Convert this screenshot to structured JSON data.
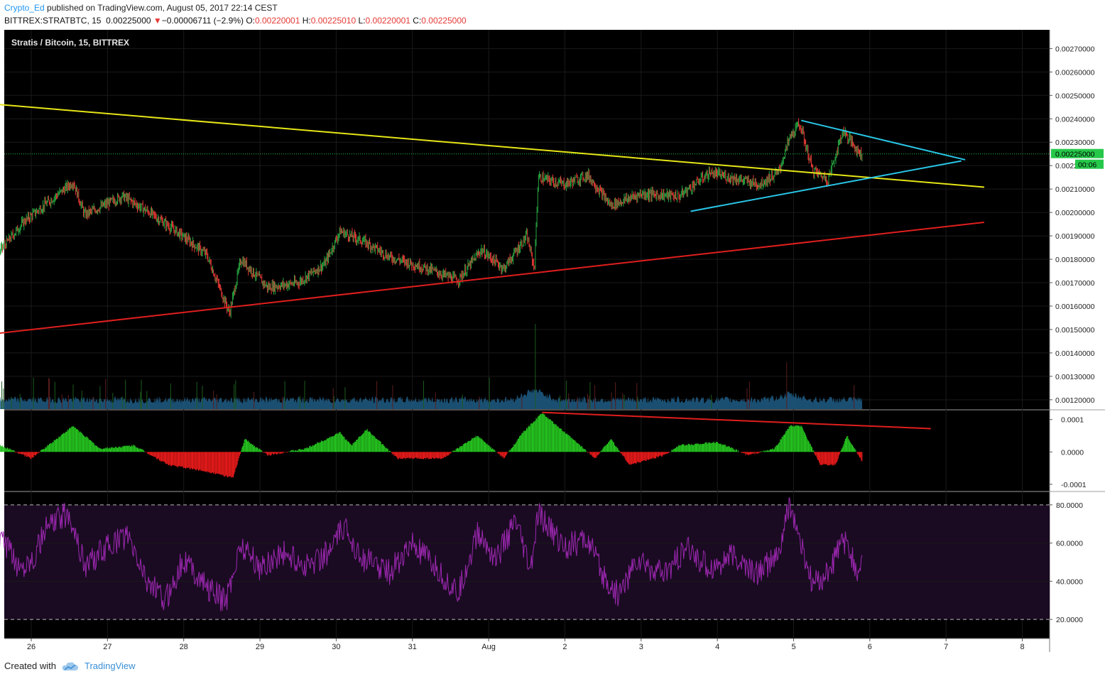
{
  "header": {
    "author": "Crypto_Ed",
    "published_text": "published on TradingView.com, August 05, 2017 22:14 CEST",
    "symbol": "BITTREX:STRATBTC, 15",
    "last": "0.00225000",
    "down_arrow": "▼",
    "change": "−0.00006711 (−2.9%)",
    "o_label": "O:",
    "o_value": "0.00220001",
    "h_label": "H:",
    "h_value": "0.00225010",
    "l_label": "L:",
    "l_value": "0.00220001",
    "c_label": "C:",
    "c_value": "0.00225000"
  },
  "footer": {
    "created_with": "Created with",
    "brand": "TradingView",
    "logo_icon": "tradingview-cloud-icon"
  },
  "colors": {
    "background": "#000000",
    "grid": "#1a1a1a",
    "up": "#26a641",
    "down": "#e53935",
    "trend_yellow": "#e6e617",
    "trend_red": "#e01e1e",
    "trend_cyan": "#29c5e6",
    "rsi": "#9c27b0",
    "rsi_band": "#1a0b22",
    "volume": "#1f5d86",
    "last_price": "#26c84a"
  },
  "chart_data": [
    {
      "type": "candlestick",
      "title": "Stratis / Bitcoin, 15, BITTREX",
      "ylim": [
        0.00116,
        0.00278
      ],
      "y_ticks": [
        "0.00270000",
        "0.00260000",
        "0.00250000",
        "0.00240000",
        "0.00230000",
        "0.00220000",
        "0.00210000",
        "0.00200000",
        "0.00190000",
        "0.00180000",
        "0.00170000",
        "0.00160000",
        "0.00150000",
        "0.00140000",
        "0.00130000",
        "0.00120000"
      ],
      "x_ticks": [
        "26",
        "27",
        "28",
        "29",
        "30",
        "31",
        "Aug",
        "2",
        "3",
        "4",
        "5",
        "6",
        "7",
        "8"
      ],
      "last_price": 0.00225,
      "last_price_label": "0.00225000",
      "countdown": "00:06",
      "key_points": [
        {
          "day": 25.0,
          "price": 0.00195
        },
        {
          "day": 25.1,
          "price": 0.00186
        },
        {
          "day": 25.4,
          "price": 0.00176
        },
        {
          "day": 25.9,
          "price": 0.00196
        },
        {
          "day": 26.55,
          "price": 0.00213
        },
        {
          "day": 26.7,
          "price": 0.00199
        },
        {
          "day": 27.2,
          "price": 0.00207
        },
        {
          "day": 27.55,
          "price": 0.002
        },
        {
          "day": 27.9,
          "price": 0.00192
        },
        {
          "day": 28.3,
          "price": 0.00182
        },
        {
          "day": 28.6,
          "price": 0.00157
        },
        {
          "day": 28.75,
          "price": 0.0018
        },
        {
          "day": 29.1,
          "price": 0.00168
        },
        {
          "day": 29.5,
          "price": 0.0017
        },
        {
          "day": 29.85,
          "price": 0.00178
        },
        {
          "day": 30.05,
          "price": 0.00192
        },
        {
          "day": 30.4,
          "price": 0.00187
        },
        {
          "day": 30.7,
          "price": 0.00181
        },
        {
          "day": 31.2,
          "price": 0.00176
        },
        {
          "day": 31.6,
          "price": 0.00171
        },
        {
          "day": 31.9,
          "price": 0.00184
        },
        {
          "day": 32.2,
          "price": 0.00176
        },
        {
          "day": 32.5,
          "price": 0.0019
        },
        {
          "day": 32.6,
          "price": 0.00176
        },
        {
          "day": 32.65,
          "price": 0.00215
        },
        {
          "day": 33.0,
          "price": 0.00212
        },
        {
          "day": 33.3,
          "price": 0.00216
        },
        {
          "day": 33.6,
          "price": 0.00203
        },
        {
          "day": 34.0,
          "price": 0.00208
        },
        {
          "day": 34.5,
          "price": 0.00207
        },
        {
          "day": 34.9,
          "price": 0.00217
        },
        {
          "day": 35.3,
          "price": 0.00214
        },
        {
          "day": 35.55,
          "price": 0.00212
        },
        {
          "day": 35.8,
          "price": 0.00217
        },
        {
          "day": 35.95,
          "price": 0.00232
        },
        {
          "day": 36.08,
          "price": 0.00238
        },
        {
          "day": 36.25,
          "price": 0.00218
        },
        {
          "day": 36.45,
          "price": 0.00214
        },
        {
          "day": 36.65,
          "price": 0.00235
        },
        {
          "day": 36.85,
          "price": 0.00226
        },
        {
          "day": 36.9,
          "price": 0.00225
        }
      ],
      "trendlines": [
        {
          "name": "long-term resistance",
          "color": "yellow",
          "from": [
            24.7,
            0.002485
          ],
          "to": [
            38.5,
            0.002108
          ]
        },
        {
          "name": "long-term support",
          "color": "red",
          "from": [
            24.7,
            0.001452
          ],
          "to": [
            38.5,
            0.001958
          ]
        },
        {
          "name": "pennant upper",
          "color": "cyan",
          "from": [
            36.1,
            0.002393
          ],
          "to": [
            38.25,
            0.002225
          ]
        },
        {
          "name": "pennant lower",
          "color": "cyan",
          "from": [
            34.65,
            0.002005
          ],
          "to": [
            38.2,
            0.00222
          ]
        }
      ],
      "volume": {
        "peaks": [
          {
            "day": 32.6,
            "relative": 1.0
          },
          {
            "day": 35.95,
            "relative": 0.55
          }
        ]
      }
    },
    {
      "type": "histogram",
      "name": "MACD histogram",
      "y_ticks": [
        "0.0001",
        "0.0000",
        "-0.0001"
      ],
      "ylim": [
        -0.00012,
        0.00013
      ],
      "key_points": [
        {
          "day": 25.0,
          "value": -4e-05
        },
        {
          "day": 25.5,
          "value": 3e-05
        },
        {
          "day": 26.0,
          "value": -2e-05
        },
        {
          "day": 26.55,
          "value": 8e-05
        },
        {
          "day": 26.9,
          "value": 1e-05
        },
        {
          "day": 27.35,
          "value": 2e-05
        },
        {
          "day": 27.8,
          "value": -4e-05
        },
        {
          "day": 28.3,
          "value": -6e-05
        },
        {
          "day": 28.65,
          "value": -8e-05
        },
        {
          "day": 28.8,
          "value": 4e-05
        },
        {
          "day": 29.1,
          "value": -1e-05
        },
        {
          "day": 29.6,
          "value": 1e-05
        },
        {
          "day": 30.05,
          "value": 6e-05
        },
        {
          "day": 30.2,
          "value": 2e-05
        },
        {
          "day": 30.4,
          "value": 7e-05
        },
        {
          "day": 30.8,
          "value": -2e-05
        },
        {
          "day": 31.4,
          "value": -2e-05
        },
        {
          "day": 31.85,
          "value": 5e-05
        },
        {
          "day": 32.2,
          "value": -2e-05
        },
        {
          "day": 32.45,
          "value": 6e-05
        },
        {
          "day": 32.7,
          "value": 0.00012
        },
        {
          "day": 33.1,
          "value": 4e-05
        },
        {
          "day": 33.4,
          "value": -2e-05
        },
        {
          "day": 33.6,
          "value": 4e-05
        },
        {
          "day": 33.85,
          "value": -4e-05
        },
        {
          "day": 34.3,
          "value": -1e-05
        },
        {
          "day": 34.5,
          "value": 2e-05
        },
        {
          "day": 35.0,
          "value": 3e-05
        },
        {
          "day": 35.4,
          "value": -1e-05
        },
        {
          "day": 35.75,
          "value": 1e-05
        },
        {
          "day": 35.95,
          "value": 8e-05
        },
        {
          "day": 36.1,
          "value": 8e-05
        },
        {
          "day": 36.35,
          "value": -4e-05
        },
        {
          "day": 36.55,
          "value": -4e-05
        },
        {
          "day": 36.7,
          "value": 5e-05
        },
        {
          "day": 36.9,
          "value": -3e-05
        }
      ],
      "divergence_line": {
        "color": "red",
        "from": [
          32.7,
          0.000122
        ],
        "to": [
          37.8,
          7.2e-05
        ]
      }
    },
    {
      "type": "line",
      "name": "RSI",
      "y_ticks": [
        "80.0000",
        "60.0000",
        "40.0000",
        "20.0000"
      ],
      "ylim": [
        10,
        87
      ],
      "bands": [
        80,
        20
      ],
      "key_points": [
        {
          "day": 25.0,
          "value": 55
        },
        {
          "day": 25.3,
          "value": 42
        },
        {
          "day": 25.6,
          "value": 62
        },
        {
          "day": 25.85,
          "value": 47
        },
        {
          "day": 26.05,
          "value": 54
        },
        {
          "day": 26.2,
          "value": 68
        },
        {
          "day": 26.5,
          "value": 76
        },
        {
          "day": 26.7,
          "value": 48
        },
        {
          "day": 27.0,
          "value": 58
        },
        {
          "day": 27.25,
          "value": 64
        },
        {
          "day": 27.5,
          "value": 42
        },
        {
          "day": 27.75,
          "value": 29
        },
        {
          "day": 28.0,
          "value": 52
        },
        {
          "day": 28.3,
          "value": 37
        },
        {
          "day": 28.55,
          "value": 29
        },
        {
          "day": 28.75,
          "value": 60
        },
        {
          "day": 29.0,
          "value": 47
        },
        {
          "day": 29.3,
          "value": 55
        },
        {
          "day": 29.6,
          "value": 48
        },
        {
          "day": 29.9,
          "value": 55
        },
        {
          "day": 30.1,
          "value": 68
        },
        {
          "day": 30.35,
          "value": 52
        },
        {
          "day": 30.7,
          "value": 45
        },
        {
          "day": 31.0,
          "value": 59
        },
        {
          "day": 31.3,
          "value": 47
        },
        {
          "day": 31.6,
          "value": 33
        },
        {
          "day": 31.85,
          "value": 65
        },
        {
          "day": 32.1,
          "value": 52
        },
        {
          "day": 32.35,
          "value": 71
        },
        {
          "day": 32.55,
          "value": 45
        },
        {
          "day": 32.65,
          "value": 75
        },
        {
          "day": 33.0,
          "value": 58
        },
        {
          "day": 33.3,
          "value": 62
        },
        {
          "day": 33.5,
          "value": 42
        },
        {
          "day": 33.7,
          "value": 33
        },
        {
          "day": 33.95,
          "value": 51
        },
        {
          "day": 34.3,
          "value": 43
        },
        {
          "day": 34.6,
          "value": 57
        },
        {
          "day": 34.9,
          "value": 47
        },
        {
          "day": 35.2,
          "value": 53
        },
        {
          "day": 35.5,
          "value": 44
        },
        {
          "day": 35.8,
          "value": 53
        },
        {
          "day": 35.95,
          "value": 81
        },
        {
          "day": 36.1,
          "value": 58
        },
        {
          "day": 36.25,
          "value": 38
        },
        {
          "day": 36.45,
          "value": 44
        },
        {
          "day": 36.65,
          "value": 62
        },
        {
          "day": 36.85,
          "value": 44
        },
        {
          "day": 36.9,
          "value": 53
        }
      ]
    }
  ]
}
